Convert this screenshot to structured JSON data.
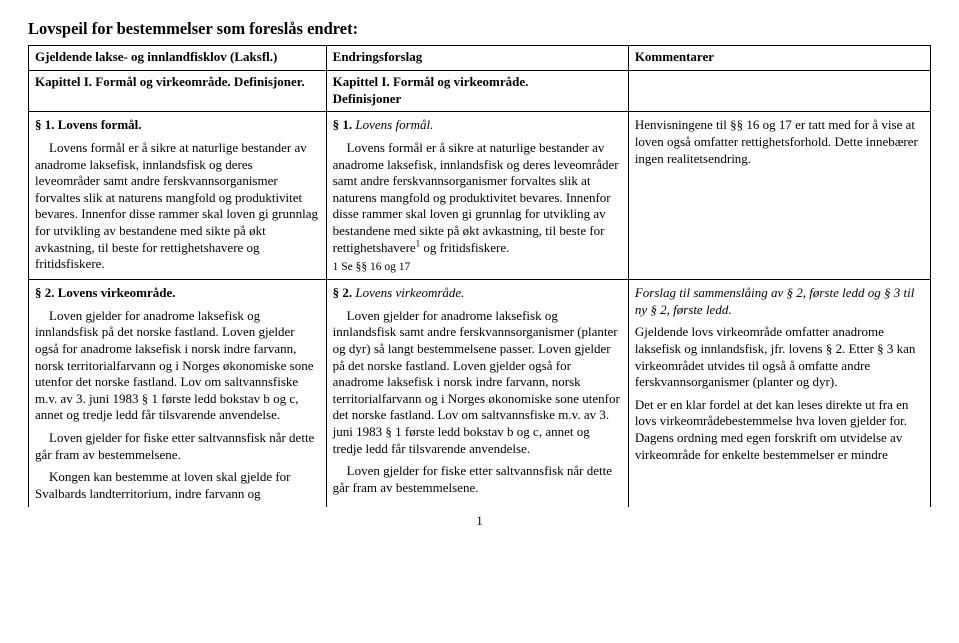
{
  "title": "Lovspeil for bestemmelser som foreslås endret:",
  "headers": {
    "col1_l1": "Gjeldende lakse- og innlandfisklov (Laksfl.)",
    "col2_l1": "Endringsforslag",
    "col3_l1": "Kommentarer"
  },
  "subheaders": {
    "col1": "Kapittel I. Formål og virkeområde. Definisjoner.",
    "col2_l1": "Kapittel I. Formål og virkeområde.",
    "col2_l2": "Definisjoner"
  },
  "row1": {
    "c1_h": "§ 1. Lovens formål.",
    "c1_p": "Lovens formål er å sikre at naturlige bestander av anadrome laksefisk, innlandsfisk og deres leveområder samt andre ferskvannsorganismer forvaltes slik at naturens mangfold og produktivitet bevares. Innenfor disse rammer skal loven gi grunnlag for utvikling av bestandene med sikte på økt avkastning, til beste for rettighetshavere og fritidsfiskere.",
    "c2_h": "§ 1. ",
    "c2_h_i": "Lovens formål.",
    "c2_p_a": "Lovens formål er å sikre at naturlige bestander av anadrome laksefisk, innlandsfisk og deres leveområder samt andre ferskvannsorganismer forvaltes slik at naturens mangfold og produktivitet bevares. Innenfor disse rammer skal loven gi grunnlag for utvikling av bestandene med sikte på økt avkastning, til beste for rettighetshavere",
    "c2_p_b": " og fritidsfiskere.",
    "c2_fn": "1 Se §§ 16 og 17",
    "c3_p": "Henvisningene til §§ 16 og 17 er tatt med for å vise at loven også omfatter rettighetsforhold. Dette innebærer ingen realitetsendring."
  },
  "row2": {
    "c1_h": "§ 2. Lovens virkeområde.",
    "c1_p1": "Loven gjelder for anadrome laksefisk og innlandsfisk på det norske fastland. Loven gjelder også for anadrome laksefisk i norsk indre farvann, norsk territorialfarvann og i Norges økonomiske sone utenfor det norske fastland. Lov om saltvannsfiske m.v. av 3. juni 1983 § 1 første ledd bokstav b og c, annet og tredje ledd får tilsvarende anvendelse.",
    "c1_p2": "Loven gjelder for fiske etter saltvannsfisk når dette går fram av bestemmelsene.",
    "c1_p3": "Kongen kan bestemme at loven skal gjelde for Svalbards landterritorium, indre farvann og",
    "c2_h": "§ 2. ",
    "c2_h_i": "Lovens virkeområde.",
    "c2_p1": "Loven gjelder for anadrome laksefisk og innlandsfisk samt andre ferskvannsorganismer (planter og dyr) så langt bestemmelsene passer. Loven gjelder på det norske fastland. Loven gjelder også for anadrome laksefisk i norsk indre farvann, norsk territorialfarvann og i Norges økonomiske sone utenfor det norske fastland. Lov om saltvannsfiske m.v. av 3. juni 1983 § 1 første ledd bokstav b og c, annet og tredje ledd får tilsvarende anvendelse.",
    "c2_p2": "Loven gjelder for fiske etter saltvannsfisk når dette går fram av bestemmelsene.",
    "c3_p1": "Forslag til sammenslåing av § 2, første ledd og § 3 til ny § 2, første ledd.",
    "c3_p2": "Gjeldende lovs virkeområde omfatter anadrome laksefisk og innlandsfisk, jfr. lovens § 2. Etter § 3 kan virkeområdet utvides til også å omfatte andre ferskvannsorganismer (planter og dyr).",
    "c3_p3": "Det er en klar fordel at det kan leses direkte ut fra en lovs virkeområdebestemmelse hva loven gjelder for. Dagens ordning med egen forskrift om utvidelse av virkeområde for enkelte bestemmelser er mindre"
  },
  "pagenum": "1"
}
